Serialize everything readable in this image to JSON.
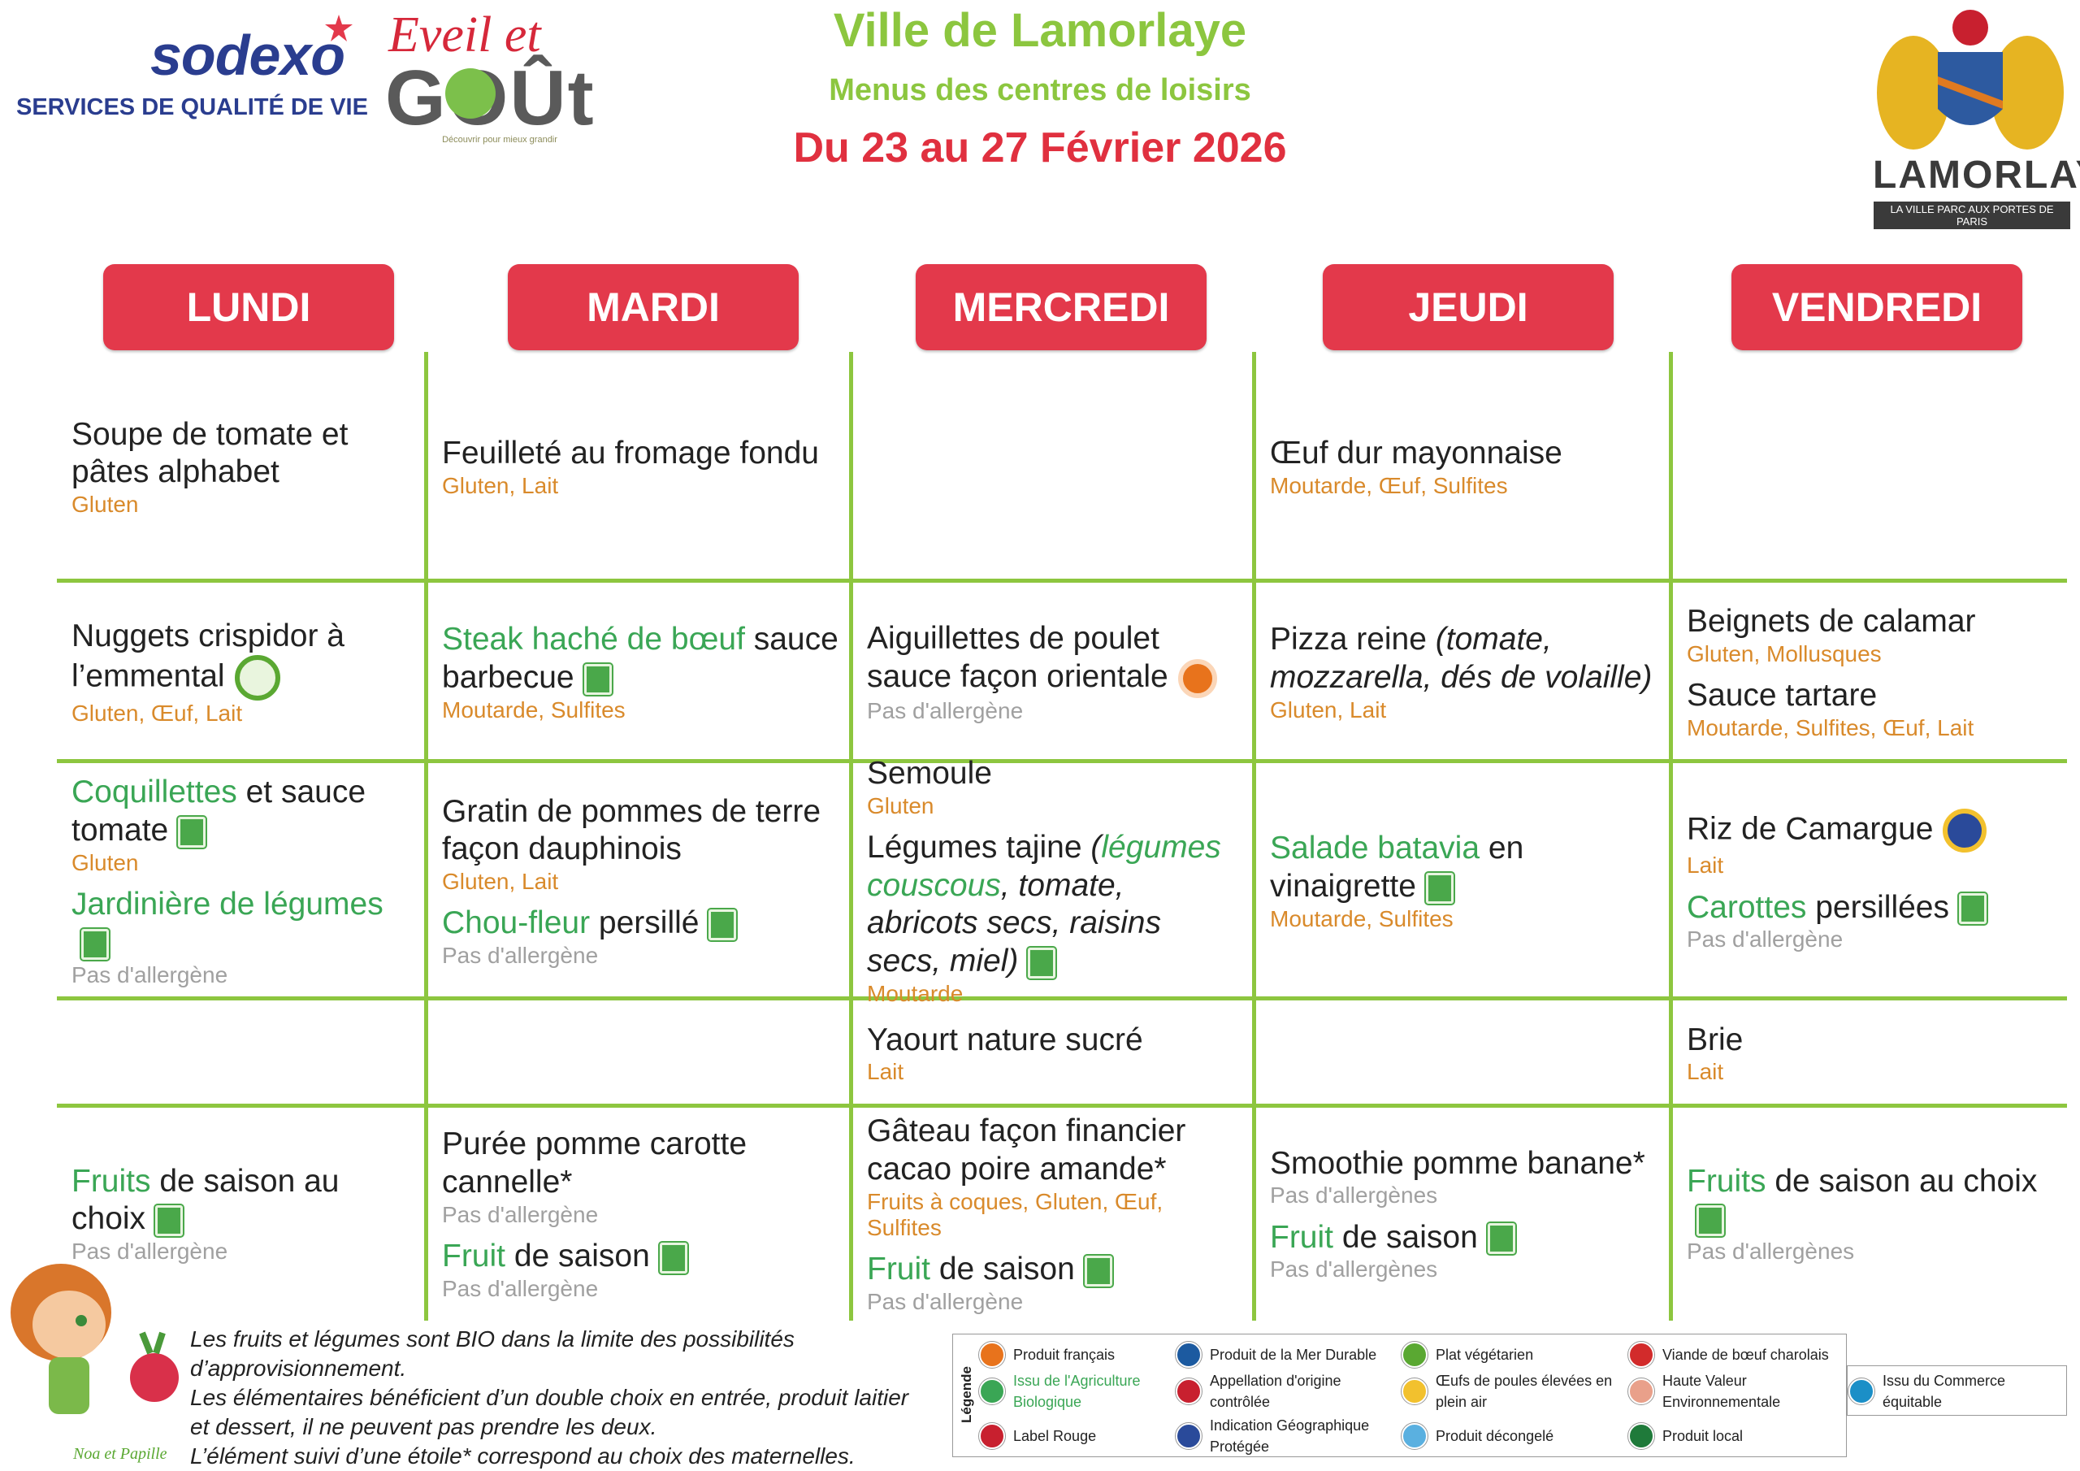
{
  "header": {
    "sodexo": "sodexo",
    "sodexo_tagline": "SERVICES DE QUALITÉ DE VIE",
    "eveil": "Eveil et",
    "gout": "GOÛt",
    "gout_tagline": "Découvrir pour mieux grandir",
    "title": "Ville de Lamorlaye",
    "subtitle": "Menus des centres de loisirs",
    "dates": "Du 23 au 27 Février 2026",
    "town": "LAMORLAYE",
    "town_tagline": "LA VILLE PARC AUX PORTES DE PARIS"
  },
  "days": [
    "LUNDI",
    "MARDI",
    "MERCREDI",
    "JEUDI",
    "VENDREDI"
  ],
  "allergen_color": "#d98a2b",
  "rows": [
    [
      [
        {
          "parts": [
            "Soupe de tomate et pâtes alphabet"
          ],
          "allergens": "Gluten"
        }
      ],
      [
        {
          "parts": [
            "Feuilleté au fromage fondu"
          ],
          "allergens": "Gluten, Lait"
        }
      ],
      [],
      [
        {
          "parts": [
            "Œuf dur mayonnaise"
          ],
          "allergens": "Moutarde, Œuf, Sulfites"
        }
      ],
      []
    ],
    [
      [
        {
          "parts": [
            "Nuggets crispidor à l’emmental"
          ],
          "allergens": "Gluten, Œuf, Lait",
          "icon": "vege"
        }
      ],
      [
        {
          "parts": [
            {
              "text": "Steak haché de bœuf",
              "color": "#3aa655"
            },
            " sauce barbecue"
          ],
          "allergens": "Moutarde, Sulfites",
          "icon": "bio"
        }
      ],
      [
        {
          "parts": [
            "Aiguillettes de poulet sauce façon orientale"
          ],
          "allergens": "Pas d'allergène",
          "allergens_color": "#a0a0a0",
          "icon": "fr"
        }
      ],
      [
        {
          "parts": [
            "Pizza reine ",
            {
              "text": "(tomate, mozzarella, dés de volaille)",
              "italic": true
            }
          ],
          "allergens": "Gluten, Lait"
        }
      ],
      [
        {
          "parts": [
            "Beignets de calamar"
          ],
          "allergens": "Gluten, Mollusques"
        },
        {
          "parts": [
            "Sauce tartare"
          ],
          "allergens": "Moutarde, Sulfites, Œuf, Lait"
        }
      ]
    ],
    [
      [
        {
          "parts": [
            {
              "text": "Coquillettes",
              "color": "#3aa655"
            },
            " et sauce tomate"
          ],
          "allergens": "Gluten",
          "icon": "bio"
        },
        {
          "parts": [
            {
              "text": "Jardinière de légumes",
              "color": "#3aa655"
            }
          ],
          "allergens": "Pas d'allergène",
          "allergens_color": "#a0a0a0",
          "icon": "bio"
        }
      ],
      [
        {
          "parts": [
            "Gratin de pommes de terre façon dauphinois"
          ],
          "allergens": "Gluten, Lait"
        },
        {
          "parts": [
            {
              "text": "Chou-fleur",
              "color": "#3aa655"
            },
            " persillé"
          ],
          "allergens": "Pas d'allergène",
          "allergens_color": "#a0a0a0",
          "icon": "bio"
        }
      ],
      [
        {
          "parts": [
            "Semoule"
          ],
          "allergens": "Gluten"
        },
        {
          "parts": [
            "Légumes tajine ",
            {
              "text": "(",
              "italic": true
            },
            {
              "text": "légumes couscous",
              "italic": true,
              "color": "#3aa655"
            },
            {
              "text": ", tomate, abricots secs, raisins secs, miel)",
              "italic": true
            }
          ],
          "allergens": "Moutarde",
          "icon": "bio"
        }
      ],
      [
        {
          "parts": [
            {
              "text": "Salade batavia",
              "color": "#3aa655"
            },
            " en vinaigrette"
          ],
          "allergens": "Moutarde, Sulfites",
          "icon": "bio"
        }
      ],
      [
        {
          "parts": [
            "Riz de Camargue"
          ],
          "allergens": "Lait",
          "icon": "igp"
        },
        {
          "parts": [
            {
              "text": "Carottes",
              "color": "#3aa655"
            },
            " persillées"
          ],
          "allergens": "Pas d'allergène",
          "allergens_color": "#a0a0a0",
          "icon": "bio"
        }
      ]
    ],
    [
      [],
      [],
      [
        {
          "parts": [
            "Yaourt nature sucré"
          ],
          "allergens": "Lait"
        }
      ],
      [],
      [
        {
          "parts": [
            "Brie"
          ],
          "allergens": "Lait"
        }
      ]
    ],
    [
      [
        {
          "parts": [
            {
              "text": "Fruits",
              "color": "#3aa655"
            },
            " de saison au choix"
          ],
          "allergens": "Pas d'allergène",
          "allergens_color": "#a0a0a0",
          "icon": "bio"
        }
      ],
      [
        {
          "parts": [
            "Purée pomme carotte cannelle*"
          ],
          "allergens": "Pas d'allergène",
          "allergens_color": "#a0a0a0"
        },
        {
          "parts": [
            {
              "text": "Fruit",
              "color": "#3aa655"
            },
            " de saison"
          ],
          "allergens": "Pas d'allergène",
          "allergens_color": "#a0a0a0",
          "icon": "bio"
        }
      ],
      [
        {
          "parts": [
            "Gâteau façon financier cacao poire amande*"
          ],
          "allergens": "Fruits à coques, Gluten, Œuf, Sulfites"
        },
        {
          "parts": [
            {
              "text": "Fruit",
              "color": "#3aa655"
            },
            " de saison"
          ],
          "allergens": "Pas d'allergène",
          "allergens_color": "#a0a0a0",
          "icon": "bio"
        }
      ],
      [
        {
          "parts": [
            "Smoothie pomme banane*"
          ],
          "allergens": "Pas d'allergènes",
          "allergens_color": "#a0a0a0"
        },
        {
          "parts": [
            {
              "text": "Fruit",
              "color": "#3aa655"
            },
            " de saison"
          ],
          "allergens": "Pas d'allergènes",
          "allergens_color": "#a0a0a0",
          "icon": "bio"
        }
      ],
      [
        {
          "parts": [
            {
              "text": "Fruits",
              "color": "#3aa655"
            },
            " de saison au choix"
          ],
          "allergens": "Pas d'allergènes",
          "allergens_color": "#a0a0a0",
          "icon": "bio"
        }
      ]
    ]
  ],
  "notes": [
    "Les fruits et légumes sont BIO dans la limite des possibilités",
    "d’approvisionnement.",
    "Les élémentaires bénéficient d’un double choix en entrée, produit laitier",
    "et dessert, il ne peuvent pas prendre les deux.",
    "L’élément suivi d’une étoile* correspond au choix des maternelles."
  ],
  "mascot": "Noa et Papille",
  "legend": {
    "title": "Légende",
    "items": [
      {
        "label": "Produit français",
        "color": "#e8731c"
      },
      {
        "label": "Produit de la Mer Durable",
        "color": "#1c5aa0"
      },
      {
        "label": "Plat végétarien",
        "color": "#5aa832"
      },
      {
        "label": "Viande de bœuf charolais",
        "color": "#d22b2b"
      },
      {
        "label": "Issu de l'Agriculture Biologique",
        "color": "#3aa655",
        "label_color": "#3aa655"
      },
      {
        "label": "Appellation d'origine contrôlée",
        "color": "#c8202f"
      },
      {
        "label": "Œufs de poules élevées en plein air",
        "color": "#f2c12e"
      },
      {
        "label": "Haute Valeur Environnementale",
        "color": "#e9a08a"
      },
      {
        "label": "Issu du Commerce équitable",
        "color": "#1b8fc7"
      },
      {
        "label": "Label Rouge",
        "color": "#c8202f"
      },
      {
        "label": "Indication Géographique Protégée",
        "color": "#2a4a9a"
      },
      {
        "label": "Produit décongelé",
        "color": "#5ab0e0"
      },
      {
        "label": "Produit local",
        "color": "#1f7a3a"
      }
    ]
  }
}
